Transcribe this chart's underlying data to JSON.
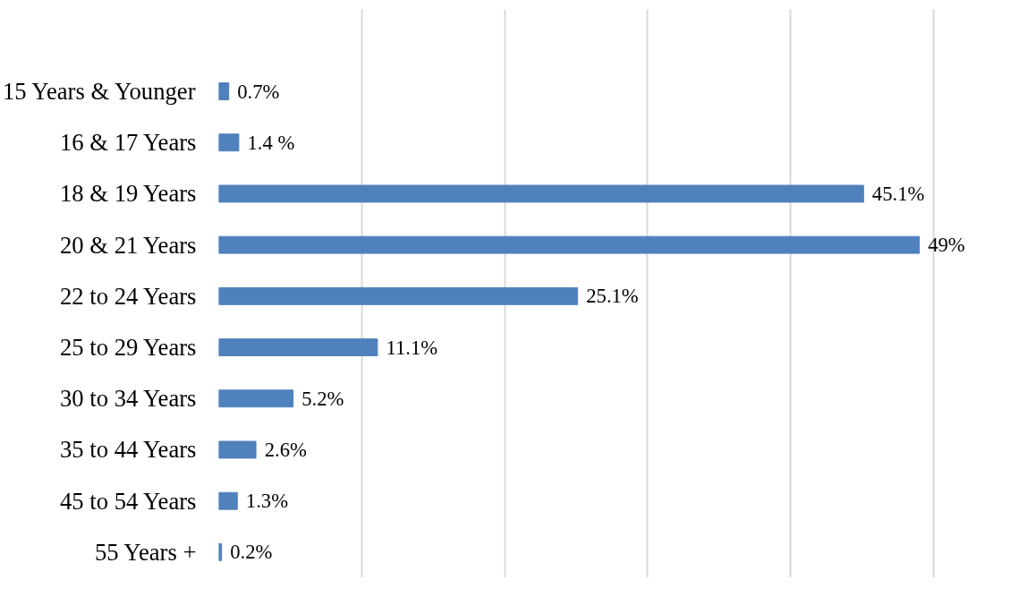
{
  "chart_data": {
    "type": "bar",
    "orientation": "horizontal",
    "categories": [
      "15 Years & Younger",
      "16 & 17 Years",
      "18 & 19 Years",
      "20 & 21 Years",
      "22 to 24 Years",
      "25 to 29 Years",
      "30 to 34 Years",
      "35 to 44 Years",
      "45 to 54 Years",
      "55 Years +"
    ],
    "values": [
      0.7,
      1.4,
      45.1,
      49,
      25.1,
      11.1,
      5.2,
      2.6,
      1.3,
      0.2
    ],
    "value_labels": [
      "0.7%",
      "1.4 %",
      "45.1%",
      "49%",
      "25.1%",
      "11.1%",
      "5.2%",
      "2.6%",
      "1.3%",
      "0.2%"
    ],
    "color": "#4f81bd",
    "tick_labels": "y",
    "grid": "x"
  }
}
